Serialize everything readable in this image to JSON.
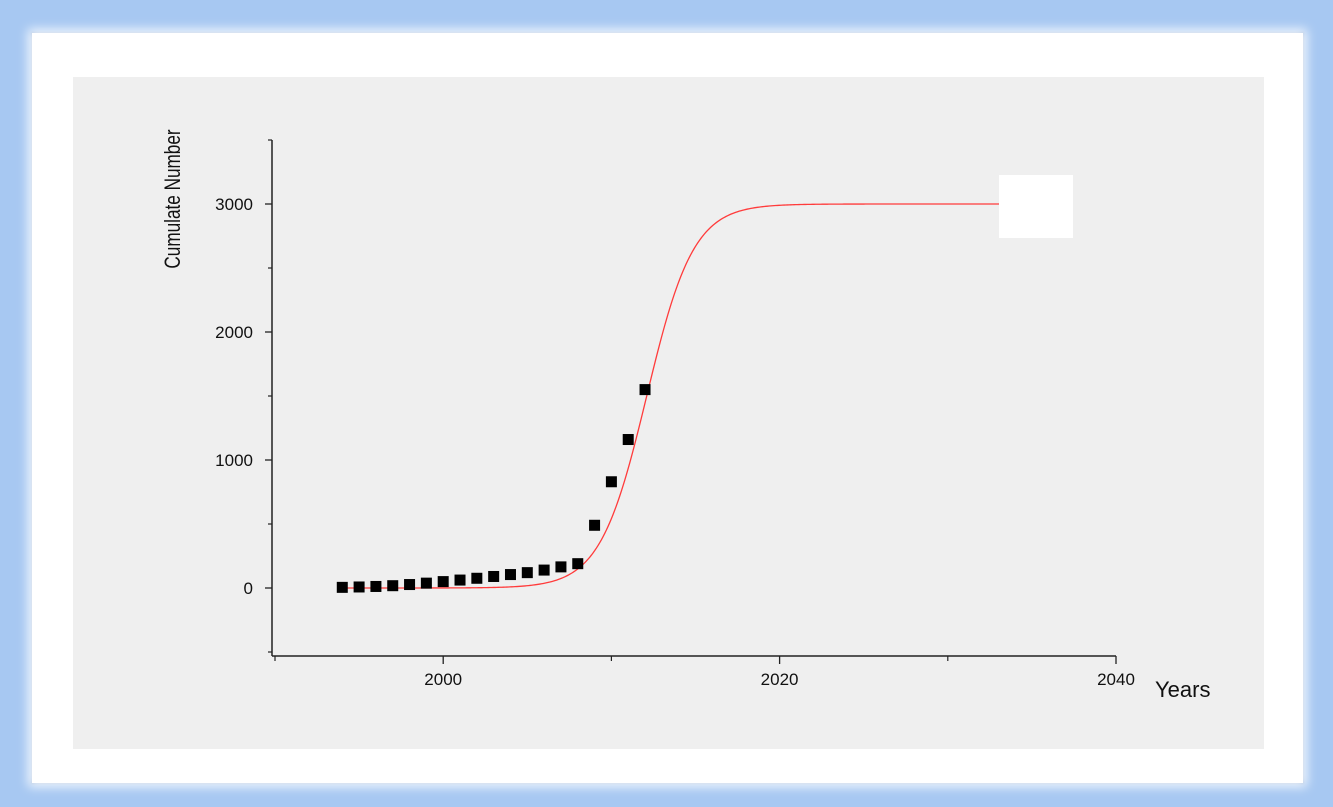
{
  "chart_data": {
    "type": "scatter",
    "xlabel": "Years",
    "ylabel": "Cumulate Number",
    "xlim": [
      1990,
      2040
    ],
    "ylim": [
      -500,
      3500
    ],
    "x_ticks": [
      2000,
      2020,
      2040
    ],
    "x_minor_ticks": [
      1990,
      2010,
      2030
    ],
    "y_ticks": [
      0,
      1000,
      2000,
      3000
    ],
    "y_minor_ticks": [
      -500,
      500,
      1500,
      2500,
      3500
    ],
    "grid": false,
    "legend": "none",
    "series": [
      {
        "type": "scatter",
        "marker": "square",
        "color": "#000000",
        "x": [
          1994,
          1995,
          1996,
          1997,
          1998,
          1999,
          2000,
          2001,
          2002,
          2003,
          2004,
          2005,
          2006,
          2007,
          2008,
          2009,
          2010,
          2011,
          2012
        ],
        "y": [
          5,
          8,
          12,
          18,
          27,
          38,
          50,
          62,
          76,
          90,
          105,
          120,
          140,
          165,
          190,
          490,
          830,
          1160,
          1550
        ]
      },
      {
        "type": "line",
        "color": "#ff3b3b",
        "model": "logistic",
        "fit": {
          "upper": 3000,
          "midpoint": 2012.1,
          "rate": 0.72
        },
        "x_range": [
          1994,
          2033.5
        ]
      }
    ]
  }
}
